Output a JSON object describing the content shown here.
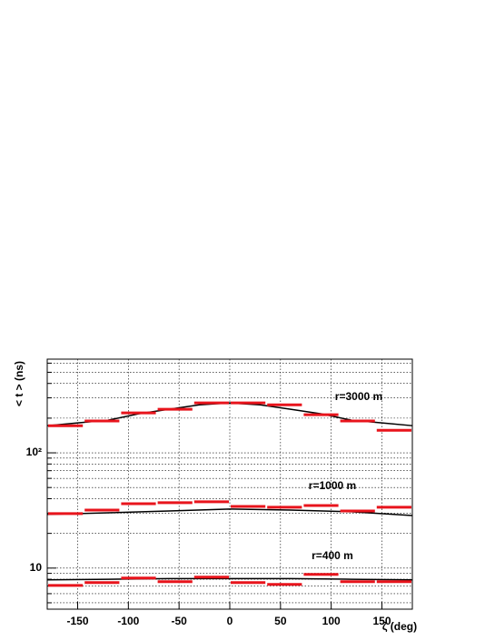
{
  "chart_data": {
    "type": "hist_fit",
    "x_label": "ζ (deg)",
    "y_label": "< t > (ns)",
    "xlim": [
      -180,
      180
    ],
    "xticks": [
      -150,
      -100,
      -50,
      0,
      50,
      100,
      150
    ],
    "ylim": [
      4.4,
      650
    ],
    "log_y": true,
    "yticks": [
      10,
      {
        "value": 100,
        "label": "10²"
      }
    ],
    "yticks_minor": [
      5,
      6,
      7,
      8,
      9,
      20,
      30,
      40,
      50,
      60,
      70,
      80,
      90,
      200,
      300,
      400,
      500,
      600
    ],
    "grid": true,
    "series": [
      {
        "label": "r=3000 m",
        "color": "#e8141c",
        "bins": [
          -180,
          -144,
          -108,
          -72,
          -36,
          0,
          36,
          72,
          108,
          144,
          180
        ],
        "values": [
          172,
          189,
          222,
          239,
          271,
          271,
          261,
          214,
          189,
          157
        ]
      },
      {
        "label": "r=1000 m",
        "color": "#e8141c",
        "bins": [
          -180,
          -144,
          -108,
          -72,
          -36,
          0,
          36,
          72,
          108,
          144,
          180
        ],
        "values": [
          29.7,
          31.9,
          36.2,
          36.9,
          37.6,
          34.3,
          33.7,
          34.9,
          31.3,
          33.7
        ]
      },
      {
        "label": "r=400 m",
        "color": "#e8141c",
        "bins": [
          -180,
          -144,
          -108,
          -72,
          -36,
          0,
          36,
          72,
          108,
          144,
          180
        ],
        "values": [
          7.08,
          7.48,
          8.19,
          7.62,
          8.34,
          7.48,
          7.21,
          8.81,
          7.62,
          7.62
        ]
      }
    ],
    "curves": [
      {
        "color": "#000000",
        "x": [
          -180,
          -150,
          -120,
          -90,
          -60,
          -30,
          0,
          30,
          60,
          90,
          120,
          150,
          180
        ],
        "values": [
          172,
          182,
          192,
          218,
          239,
          261,
          271,
          261,
          239,
          218,
          192,
          182,
          172
        ]
      },
      {
        "color": "#000000",
        "x": [
          -180,
          -120,
          -60,
          0,
          60,
          120,
          180
        ],
        "values": [
          29.2,
          30.2,
          31.3,
          32.5,
          31.9,
          30.8,
          28.6
        ]
      },
      {
        "color": "#000000",
        "x": [
          -180,
          -120,
          -60,
          0,
          60,
          120,
          180
        ],
        "values": [
          7.9,
          8.0,
          8.1,
          8.1,
          8.1,
          8.0,
          7.9
        ]
      }
    ]
  }
}
